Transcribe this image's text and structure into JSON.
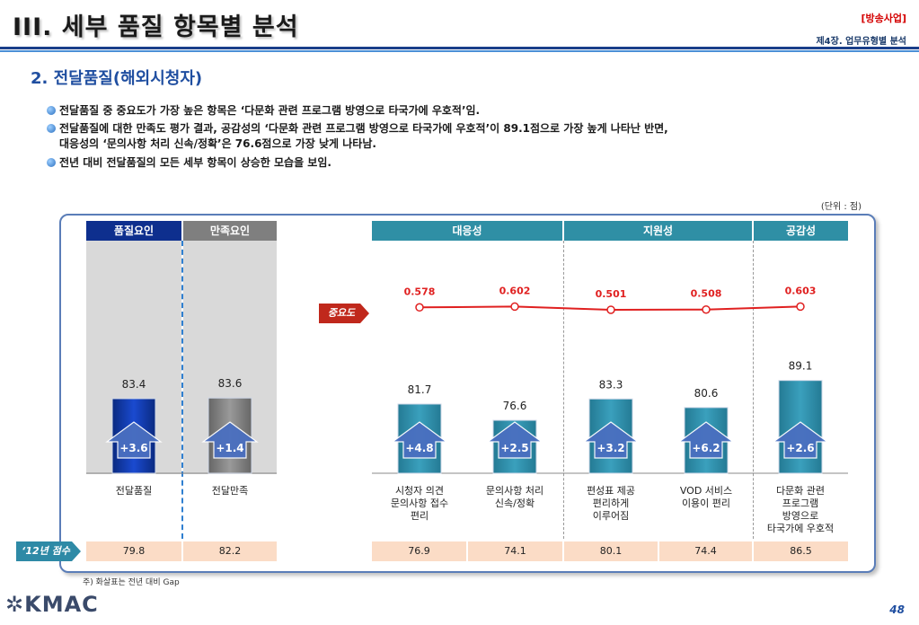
{
  "header": {
    "title": "III. 세부 품질 항목별 분석",
    "tag": "[방송사업]",
    "chapter": "제4장. 업무유형별 분석"
  },
  "section_title": "2. 전달품질(해외시청자)",
  "bullets": [
    "전달품질 중 중요도가 가장 높은 항목은 ‘다문화 관련 프로그램 방영으로 타국가에 우호적’임.",
    "전달품질에 대한 만족도 평가 결과, 공감성의 ‘다문화 관련 프로그램 방영으로 타국가에 우호적’이 89.1점으로 가장 높게 나타난 반면,",
    "대응성의 ‘문의사항 처리 신속/정확’은 76.6점으로 가장 낮게 나타남.",
    "전년 대비 전달품질의 모든 세부 항목이 상승한 모습을 보임."
  ],
  "unit": "(단위 : 점)",
  "group_headers": {
    "quality": "품질요인",
    "satisfaction": "만족요인",
    "responsiveness": "대응성",
    "support": "지원성",
    "empathy": "공감성"
  },
  "importance_label": "중요도",
  "prev_year_label": "‘12년 점수",
  "note": "주) 화살표는 전년 대비 Gap",
  "page_number": "48",
  "logo_text": "KMAC",
  "colors": {
    "navy": "#0e2f8e",
    "gray": "#7f7f7f",
    "teal": "#2e8aa6",
    "teal_header": "#2f8fa5",
    "importance_line": "#e02020",
    "arrow": "#4a6fc0"
  },
  "chart_data": {
    "type": "bar",
    "categories": [
      "전달품질",
      "전달만족",
      "시청자 의견 문의사항 접수 편리",
      "문의사항 처리 신속/정확",
      "편성표 제공 편리하게 이루어짐",
      "VOD 서비스 이용이 편리",
      "다문화 관련 프로그램 방영으로 타국가에 우호적"
    ],
    "category_lines": [
      [
        "전달품질"
      ],
      [
        "전달만족"
      ],
      [
        "시청자 의견",
        "문의사항 접수",
        "편리"
      ],
      [
        "문의사항 처리",
        "신속/정확"
      ],
      [
        "편성표 제공",
        "편리하게",
        "이루어짐"
      ],
      [
        "VOD 서비스",
        "이용이 편리"
      ],
      [
        "다문화 관련",
        "프로그램",
        "방영으로",
        "타국가에 우호적"
      ]
    ],
    "values": [
      83.4,
      83.6,
      81.7,
      76.6,
      83.3,
      80.6,
      89.1
    ],
    "value_labels": [
      "83.4",
      "83.6",
      "81.7",
      "76.6",
      "83.3",
      "80.6",
      "89.1"
    ],
    "gaps": [
      "+3.6",
      "+1.4",
      "+4.8",
      "+2.5",
      "+3.2",
      "+6.2",
      "+2.6"
    ],
    "prev_year": [
      "79.8",
      "82.2",
      "76.9",
      "74.1",
      "80.1",
      "74.4",
      "86.5"
    ],
    "importance": {
      "values": [
        0.578,
        0.602,
        0.501,
        0.508,
        0.603
      ],
      "labels": [
        "0.578",
        "0.602",
        "0.501",
        "0.508",
        "0.603"
      ]
    }
  }
}
